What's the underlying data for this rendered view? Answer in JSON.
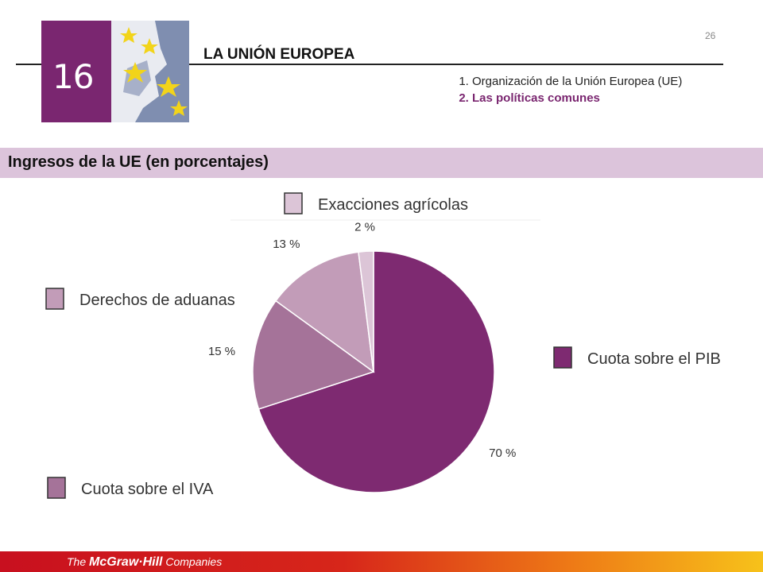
{
  "header": {
    "unit_number": "16",
    "title": "LA UNIÓN EUROPEA",
    "page_number": "26",
    "outline": [
      {
        "number": "1.",
        "label": "Organización de la Unión Europea (UE)",
        "active": false
      },
      {
        "number": "2.",
        "label": "Las políticas comunes",
        "active": true
      }
    ]
  },
  "section": {
    "title": "Ingresos de la UE (en porcentajes)"
  },
  "chart_data": {
    "type": "pie",
    "title": "",
    "slices": [
      {
        "label": "Cuota sobre el PIB",
        "value": 70,
        "value_label": "70 %",
        "color": "#7e2a71"
      },
      {
        "label": "Cuota sobre el IVA",
        "value": 15,
        "value_label": "15 %",
        "color": "#a57399"
      },
      {
        "label": "Derechos de aduanas",
        "value": 13,
        "value_label": "13 %",
        "color": "#c29cb8"
      },
      {
        "label": "Exacciones agrícolas",
        "value": 2,
        "value_label": "2 %",
        "color": "#dcc5d7"
      }
    ]
  },
  "footer": {
    "logo_prefix": "The ",
    "logo_brand": "McGraw·Hill",
    "logo_suffix": " Companies"
  },
  "colors": {
    "accent": "#7a2670",
    "band": "#dcc4db",
    "footer_start": "#c8101f",
    "footer_end": "#f7c21a"
  }
}
